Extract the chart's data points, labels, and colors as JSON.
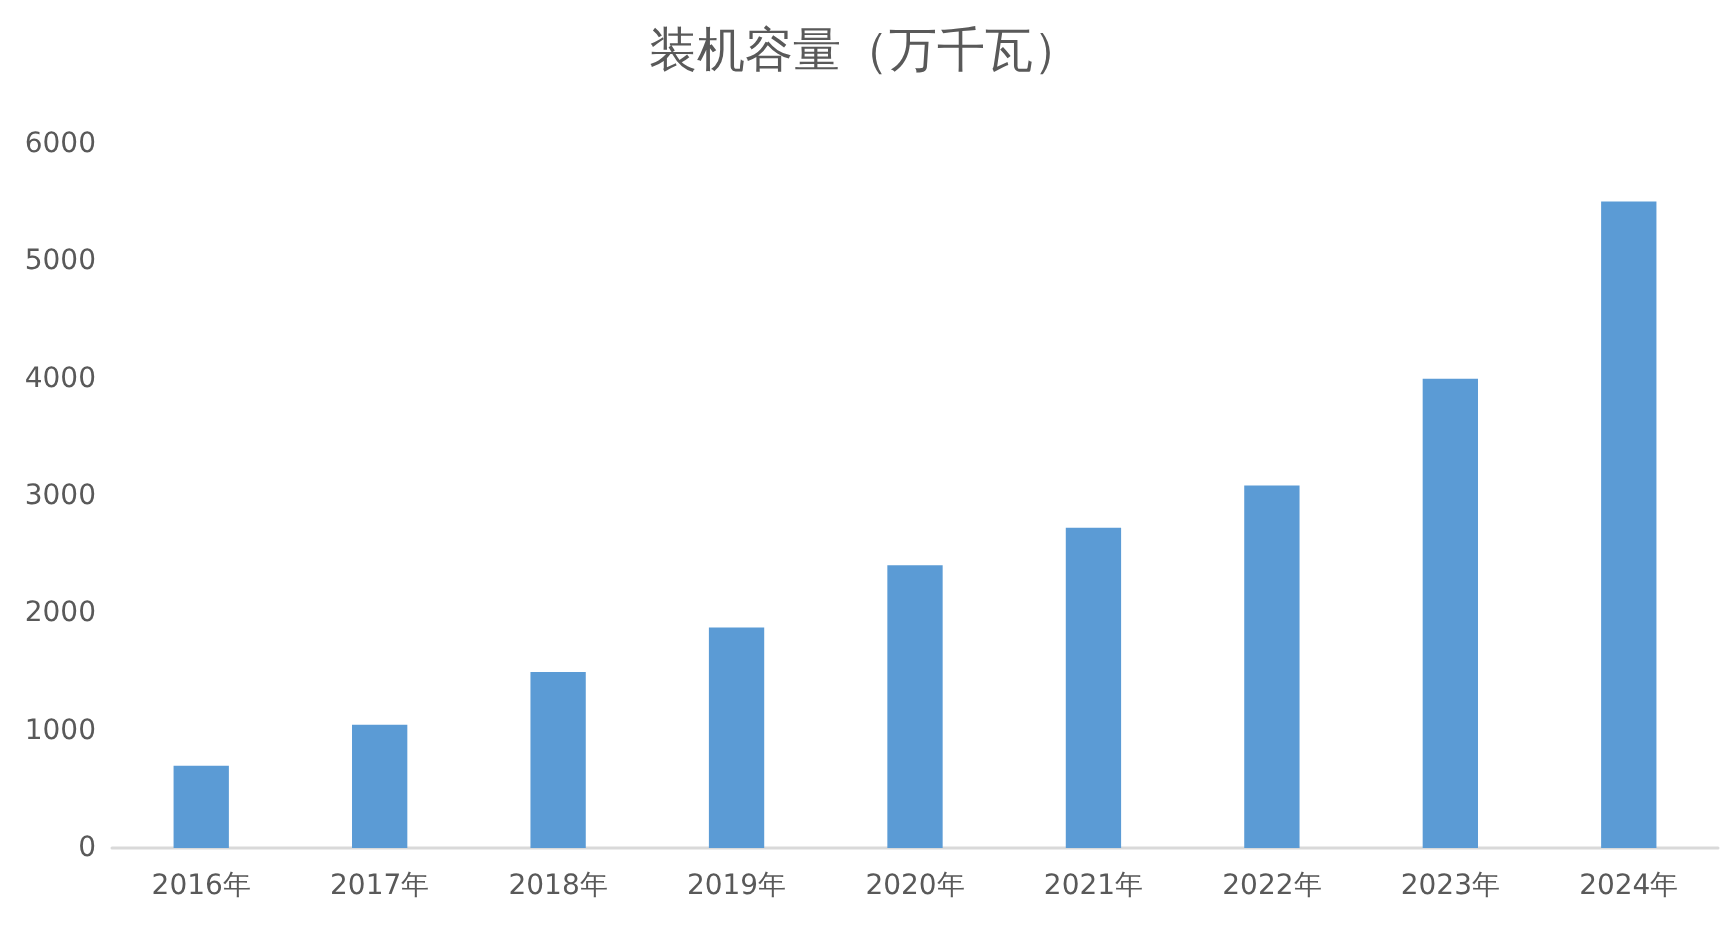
{
  "chart_data": {
    "type": "bar",
    "title": "装机容量（万千瓦）",
    "categories": [
      "2016年",
      "2017年",
      "2018年",
      "2019年",
      "2020年",
      "2021年",
      "2022年",
      "2023年",
      "2024年"
    ],
    "values": [
      700,
      1050,
      1500,
      1880,
      2410,
      2730,
      3090,
      4000,
      5510
    ],
    "color": "#5b9bd5",
    "ylim": [
      0,
      6000
    ],
    "yticks": [
      0,
      1000,
      2000,
      3000,
      4000,
      5000,
      6000
    ],
    "grid": false
  }
}
